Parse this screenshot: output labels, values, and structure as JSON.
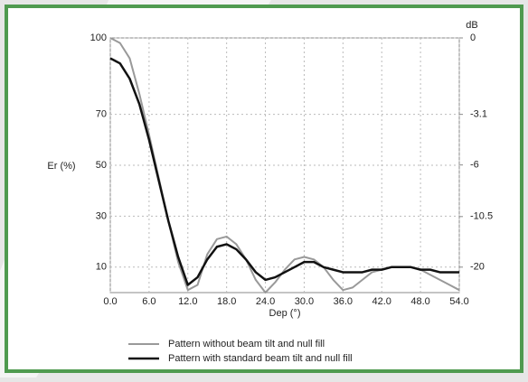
{
  "chart_data": {
    "type": "line",
    "y_label": "Er (%)",
    "y2_label": "dB",
    "x_label": "Dep (°)",
    "x": [
      0,
      1.5,
      3,
      4.5,
      6,
      7.5,
      9,
      10.5,
      12,
      13.5,
      15,
      16.5,
      18,
      19.5,
      21,
      22.5,
      24,
      25.5,
      27,
      28.5,
      30,
      31.5,
      33,
      34.5,
      36,
      37.5,
      39,
      40.5,
      42,
      43.5,
      45,
      46.5,
      48,
      49.5,
      51,
      52.5,
      54
    ],
    "series": [
      {
        "name": "Pattern without beam tilt and null fill",
        "color": "#999999",
        "values": [
          100,
          98,
          92,
          78,
          62,
          45,
          28,
          12,
          1,
          3,
          15,
          21,
          22,
          19,
          13,
          5,
          0,
          4,
          9,
          13,
          14,
          13,
          10,
          5,
          1,
          2,
          5,
          8,
          9,
          10,
          10,
          10,
          9,
          7,
          5,
          3,
          1
        ]
      },
      {
        "name": "Pattern with standard beam tilt and null fill",
        "color": "#111111",
        "values": [
          92,
          90,
          84,
          74,
          60,
          44,
          28,
          14,
          3,
          6,
          13,
          18,
          19,
          17,
          13,
          8,
          5,
          6,
          8,
          10,
          12,
          12,
          10,
          9,
          8,
          8,
          8,
          9,
          9,
          10,
          10,
          10,
          9,
          9,
          8,
          8,
          8
        ]
      }
    ],
    "xlim": [
      0,
      54
    ],
    "xticks": [
      {
        "value": 0,
        "label": "0.0"
      },
      {
        "value": 6,
        "label": "6.0"
      },
      {
        "value": 12,
        "label": "12.0"
      },
      {
        "value": 18,
        "label": "18.0"
      },
      {
        "value": 24,
        "label": "24.0"
      },
      {
        "value": 30,
        "label": "30.0"
      },
      {
        "value": 36,
        "label": "36.0"
      },
      {
        "value": 42,
        "label": "42.0"
      },
      {
        "value": 48,
        "label": "48.0"
      },
      {
        "value": 54,
        "label": "54.0"
      }
    ],
    "ylim": [
      0,
      100
    ],
    "yticks": [
      10,
      30,
      50,
      70,
      100
    ],
    "y2scale": "db",
    "y2ticks": [
      0,
      -3.1,
      -6,
      -10.5,
      -20
    ],
    "grid": true
  }
}
